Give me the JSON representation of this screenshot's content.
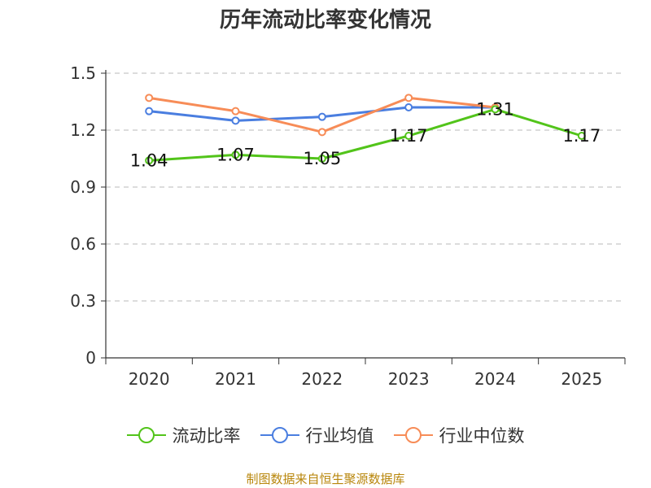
{
  "chart_data": {
    "type": "line",
    "title": "历年流动比率变化情况",
    "categories": [
      "2020",
      "2021",
      "2022",
      "2023",
      "2024",
      "2025"
    ],
    "ylim": [
      0,
      1.5
    ],
    "yticks": [
      "0",
      "0.3",
      "0.6",
      "0.9",
      "1.2",
      "1.5"
    ],
    "ytick_values": [
      0,
      0.3,
      0.6,
      0.9,
      1.2,
      1.5
    ],
    "grid": true,
    "legend_position": "bottom",
    "series": [
      {
        "name": "流动比率",
        "color": "#52c41a",
        "values": [
          1.04,
          1.07,
          1.05,
          1.17,
          1.31,
          1.17
        ],
        "labels": [
          "1.04",
          "1.07",
          "1.05",
          "1.17",
          "1.31",
          "1.17"
        ]
      },
      {
        "name": "行业均值",
        "color": "#4a7ee0",
        "values": [
          1.3,
          1.25,
          1.27,
          1.32,
          1.32,
          null
        ]
      },
      {
        "name": "行业中位数",
        "color": "#f78c57",
        "values": [
          1.37,
          1.3,
          1.19,
          1.37,
          1.32,
          null
        ]
      }
    ]
  },
  "source": "制图数据来自恒生聚源数据库"
}
